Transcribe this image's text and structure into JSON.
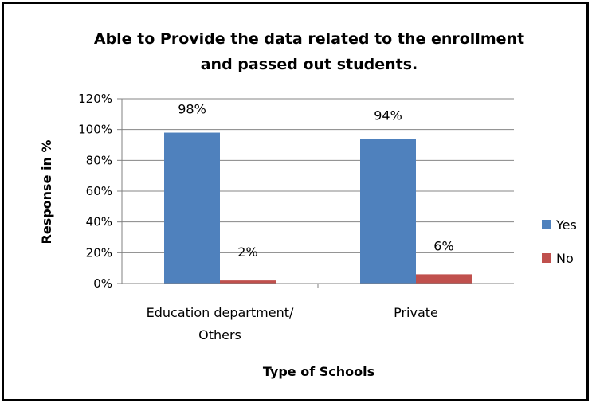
{
  "chart_data": {
    "type": "bar",
    "title_lines": [
      "Able to Provide the data related to the enrollment",
      "and passed out students."
    ],
    "xlabel": "Type of Schools",
    "ylabel": "Response in %",
    "categories": [
      [
        "Education department/",
        "Others"
      ],
      [
        "Private"
      ]
    ],
    "series": [
      {
        "name": "Yes",
        "color": "#4F81BD",
        "values": [
          98,
          94
        ],
        "labels": [
          "98%",
          "94%"
        ]
      },
      {
        "name": "No",
        "color": "#C0504D",
        "values": [
          2,
          6
        ],
        "labels": [
          "2%",
          "6%"
        ]
      }
    ],
    "ylim": [
      0,
      120
    ],
    "yticks": [
      0,
      20,
      40,
      60,
      80,
      100,
      120
    ],
    "ytick_labels": [
      "0%",
      "20%",
      "40%",
      "60%",
      "80%",
      "100%",
      "120%"
    ],
    "grid": true,
    "legend_position": "right"
  }
}
